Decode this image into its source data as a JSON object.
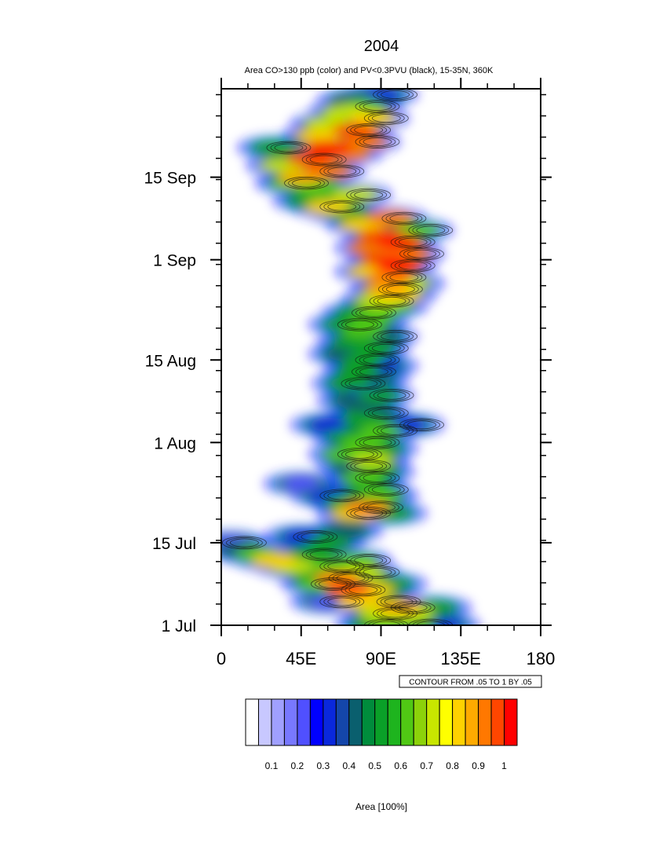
{
  "chart_data": {
    "type": "heatmap",
    "title": "2004",
    "subtitle": "Area CO>130 ppb (color) and PV<0.3PVU (black), 15-35N, 360K",
    "x_ticks": [
      {
        "value": 0,
        "label": "0"
      },
      {
        "value": 45,
        "label": "45E"
      },
      {
        "value": 90,
        "label": "90E"
      },
      {
        "value": 135,
        "label": "135E"
      },
      {
        "value": 180,
        "label": "180"
      }
    ],
    "xlim": [
      0,
      180
    ],
    "y_ticks": [
      {
        "value": "2004-07-01",
        "label": "1 Jul"
      },
      {
        "value": "2004-07-15",
        "label": "15 Jul"
      },
      {
        "value": "2004-08-01",
        "label": "1 Aug"
      },
      {
        "value": "2004-08-15",
        "label": "15 Aug"
      },
      {
        "value": "2004-09-01",
        "label": "1 Sep"
      },
      {
        "value": "2004-09-15",
        "label": "15 Sep"
      }
    ],
    "ylim": [
      "2004-07-01",
      "2004-09-30"
    ],
    "contour_note": "CONTOUR FROM .05 TO 1 BY .05",
    "colorbar": {
      "title": "Area [100%]",
      "labels": [
        "0.1",
        "0.2",
        "0.3",
        "0.4",
        "0.5",
        "0.6",
        "0.7",
        "0.8",
        "0.9",
        "1"
      ],
      "colors": [
        "#ffffff",
        "#c8c8ff",
        "#a0a0ff",
        "#7878ff",
        "#5050ff",
        "#0000ff",
        "#0a28dc",
        "#1446aa",
        "#0a5f6e",
        "#008c3c",
        "#0aa028",
        "#1eb41e",
        "#50c814",
        "#8cd20a",
        "#c8e600",
        "#ffff00",
        "#ffd200",
        "#ffaa00",
        "#ff7800",
        "#ff4600",
        "#ff0000"
      ]
    },
    "series": [
      {
        "type": "filled",
        "points": [
          [
            "2004-07-01",
            85,
            0.5
          ],
          [
            "2004-07-01",
            95,
            0.6
          ],
          [
            "2004-07-01",
            110,
            0.5
          ],
          [
            "2004-07-01",
            125,
            0.3
          ],
          [
            "2004-07-03",
            90,
            0.7
          ],
          [
            "2004-07-03",
            108,
            0.7
          ],
          [
            "2004-07-04",
            100,
            0.85
          ],
          [
            "2004-07-04",
            120,
            0.5
          ],
          [
            "2004-07-05",
            60,
            0.2
          ],
          [
            "2004-07-05",
            78,
            0.8
          ],
          [
            "2004-07-05",
            92,
            0.5
          ],
          [
            "2004-07-06",
            70,
            0.4
          ],
          [
            "2004-07-07",
            72,
            0.95
          ],
          [
            "2004-07-07",
            85,
            0.8
          ],
          [
            "2004-07-08",
            55,
            0.6
          ],
          [
            "2004-07-08",
            95,
            0.5
          ],
          [
            "2004-07-09",
            65,
            0.9
          ],
          [
            "2004-07-10",
            50,
            0.5
          ],
          [
            "2004-07-10",
            80,
            0.7
          ],
          [
            "2004-07-11",
            40,
            0.7
          ],
          [
            "2004-07-11",
            60,
            0.6
          ],
          [
            "2004-07-12",
            30,
            0.8
          ],
          [
            "2004-07-12",
            75,
            0.6
          ],
          [
            "2004-07-13",
            20,
            0.6
          ],
          [
            "2004-07-13",
            50,
            0.5
          ],
          [
            "2004-07-14",
            10,
            0.4
          ],
          [
            "2004-07-15",
            5,
            0.2
          ],
          [
            "2004-07-15",
            60,
            0.5
          ],
          [
            "2004-07-16",
            45,
            0.3
          ],
          [
            "2004-07-17",
            70,
            0.4
          ],
          [
            "2004-07-20",
            75,
            0.8
          ],
          [
            "2004-07-20",
            95,
            0.5
          ],
          [
            "2004-07-21",
            82,
            0.9
          ],
          [
            "2004-07-22",
            70,
            0.5
          ],
          [
            "2004-07-23",
            60,
            0.3
          ],
          [
            "2004-07-23",
            90,
            0.6
          ],
          [
            "2004-07-24",
            85,
            0.5
          ],
          [
            "2004-07-25",
            45,
            0.2
          ],
          [
            "2004-07-26",
            80,
            0.6
          ],
          [
            "2004-07-27",
            88,
            0.5
          ],
          [
            "2004-07-28",
            75,
            0.4
          ],
          [
            "2004-07-29",
            85,
            0.7
          ],
          [
            "2004-07-30",
            70,
            0.6
          ],
          [
            "2004-07-31",
            90,
            0.5
          ],
          [
            "2004-08-01",
            80,
            0.6
          ],
          [
            "2004-08-02",
            72,
            0.5
          ],
          [
            "2004-08-03",
            90,
            0.6
          ],
          [
            "2004-08-04",
            60,
            0.3
          ],
          [
            "2004-08-04",
            105,
            0.3
          ],
          [
            "2004-08-05",
            80,
            0.5
          ],
          [
            "2004-08-06",
            85,
            0.4
          ],
          [
            "2004-08-08",
            75,
            0.4
          ],
          [
            "2004-08-09",
            88,
            0.5
          ],
          [
            "2004-08-10",
            80,
            0.3
          ],
          [
            "2004-08-11",
            72,
            0.5
          ],
          [
            "2004-08-12",
            85,
            0.4
          ],
          [
            "2004-08-13",
            78,
            0.5
          ],
          [
            "2004-08-14",
            90,
            0.3
          ],
          [
            "2004-08-15",
            80,
            0.5
          ],
          [
            "2004-08-16",
            70,
            0.4
          ],
          [
            "2004-08-17",
            85,
            0.5
          ],
          [
            "2004-08-18",
            75,
            0.5
          ],
          [
            "2004-08-19",
            90,
            0.4
          ],
          [
            "2004-08-20",
            80,
            0.6
          ],
          [
            "2004-08-21",
            70,
            0.5
          ],
          [
            "2004-08-22",
            85,
            0.6
          ],
          [
            "2004-08-23",
            78,
            0.5
          ],
          [
            "2004-08-24",
            95,
            0.6
          ],
          [
            "2004-08-25",
            88,
            0.7
          ],
          [
            "2004-08-26",
            100,
            0.8
          ],
          [
            "2004-08-27",
            93,
            0.85
          ],
          [
            "2004-08-28",
            105,
            0.7
          ],
          [
            "2004-08-29",
            95,
            0.9
          ],
          [
            "2004-08-30",
            85,
            0.8
          ],
          [
            "2004-08-31",
            100,
            1.0
          ],
          [
            "2004-09-01",
            92,
            0.95
          ],
          [
            "2004-09-02",
            105,
            0.9
          ],
          [
            "2004-09-03",
            85,
            0.9
          ],
          [
            "2004-09-04",
            100,
            1.0
          ],
          [
            "2004-09-05",
            90,
            0.95
          ],
          [
            "2004-09-06",
            110,
            0.6
          ],
          [
            "2004-09-07",
            80,
            0.8
          ],
          [
            "2004-09-08",
            95,
            0.9
          ],
          [
            "2004-09-09",
            70,
            0.5
          ],
          [
            "2004-09-10",
            60,
            0.8
          ],
          [
            "2004-09-11",
            50,
            0.5
          ],
          [
            "2004-09-12",
            75,
            0.7
          ],
          [
            "2004-09-13",
            55,
            0.6
          ],
          [
            "2004-09-14",
            40,
            0.6
          ],
          [
            "2004-09-15",
            45,
            0.85
          ],
          [
            "2004-09-16",
            60,
            0.9
          ],
          [
            "2004-09-17",
            35,
            0.7
          ],
          [
            "2004-09-18",
            50,
            0.95
          ],
          [
            "2004-09-19",
            70,
            0.9
          ],
          [
            "2004-09-20",
            30,
            0.5
          ],
          [
            "2004-09-20",
            60,
            1.0
          ],
          [
            "2004-09-21",
            80,
            0.9
          ],
          [
            "2004-09-22",
            55,
            0.8
          ],
          [
            "2004-09-23",
            75,
            0.95
          ],
          [
            "2004-09-24",
            60,
            0.7
          ],
          [
            "2004-09-25",
            85,
            0.8
          ],
          [
            "2004-09-26",
            70,
            0.7
          ],
          [
            "2004-09-27",
            80,
            0.6
          ],
          [
            "2004-09-28",
            75,
            0.4
          ],
          [
            "2004-09-29",
            90,
            0.3
          ]
        ]
      }
    ]
  }
}
